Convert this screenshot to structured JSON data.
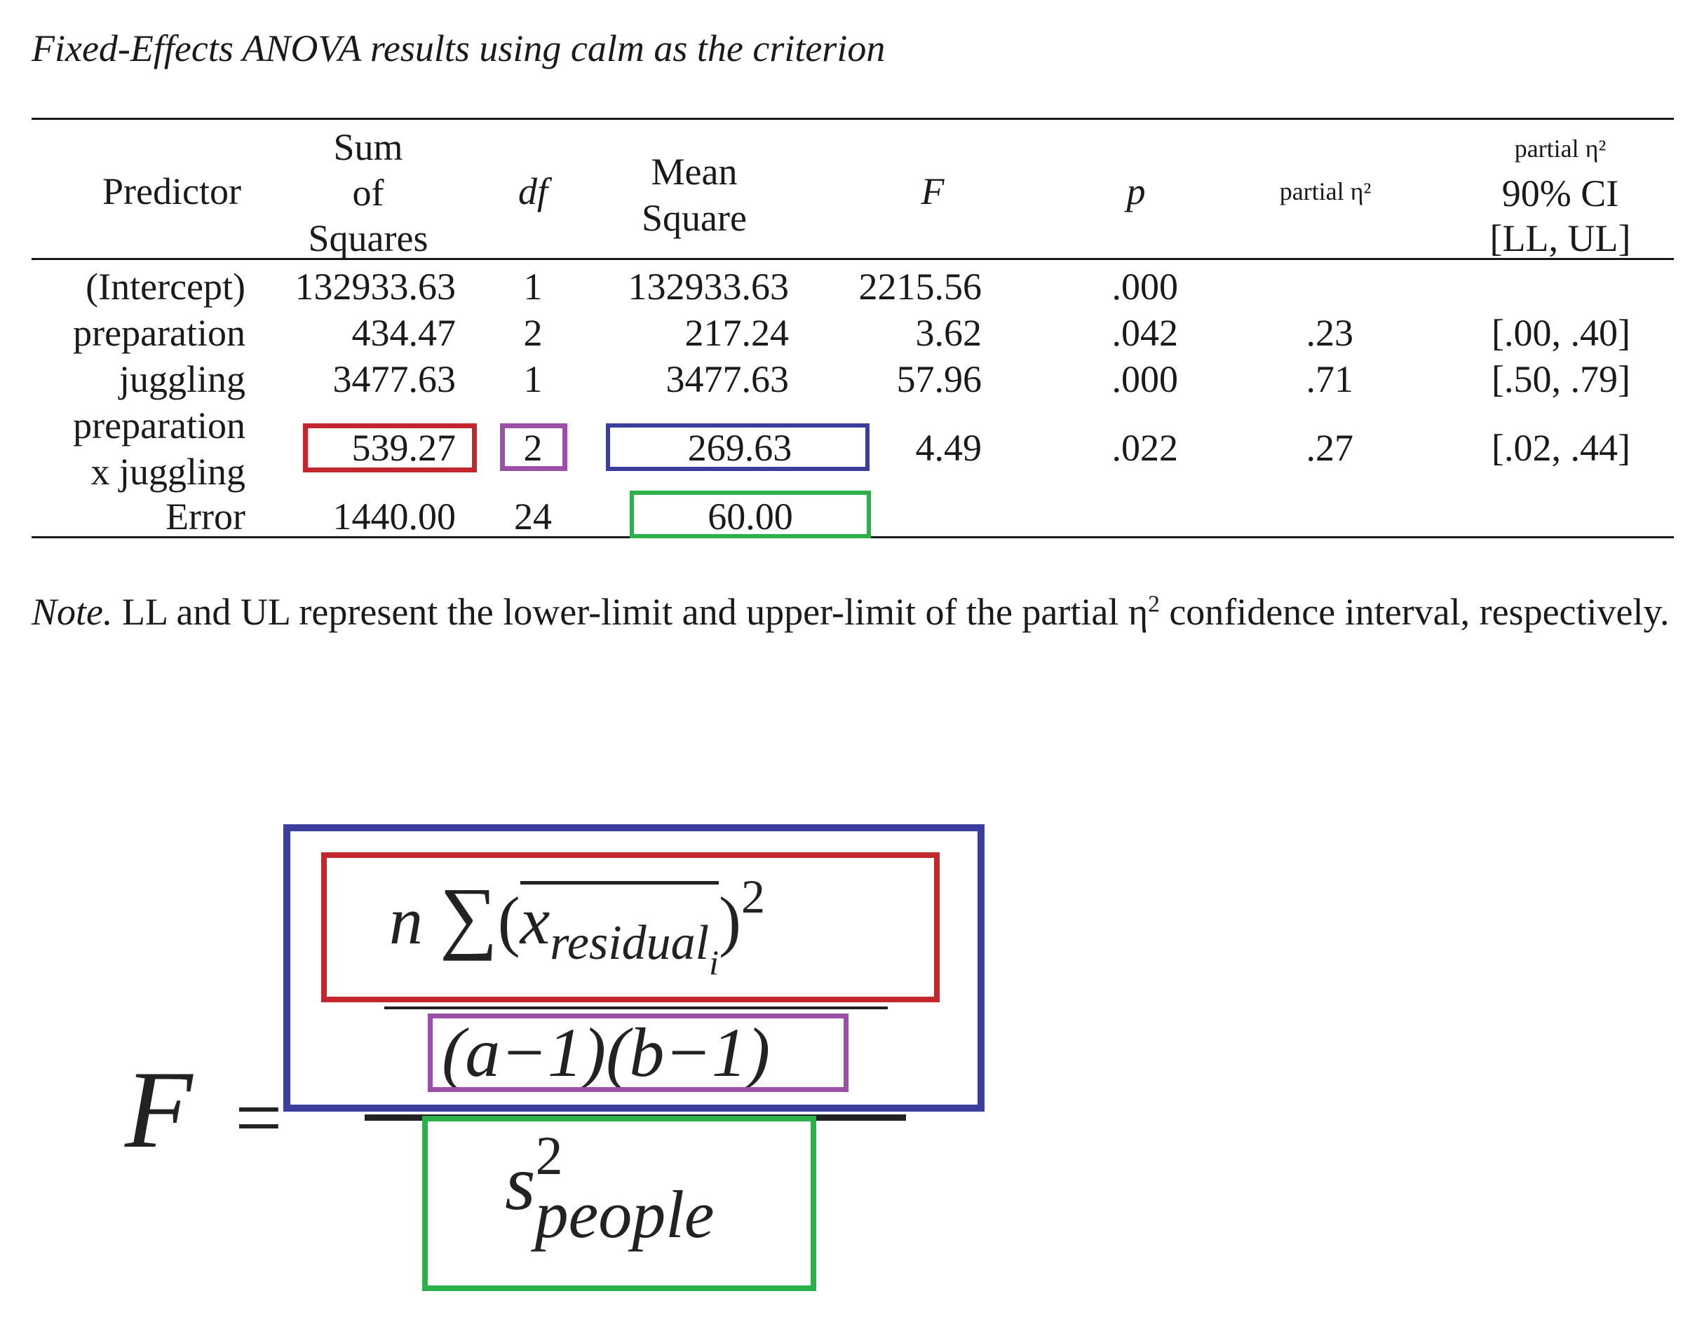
{
  "title": "Fixed-Effects ANOVA results using calm as the criterion",
  "headers": {
    "predictor": "Predictor",
    "ss": [
      "Sum",
      "of",
      "Squares"
    ],
    "df": "df",
    "ms": [
      "Mean",
      "Square"
    ],
    "f": "F",
    "p": "p",
    "eta": "partial η²",
    "ci": [
      "partial η²",
      "90% CI",
      "[LL, UL]"
    ]
  },
  "rows": [
    {
      "predictor": [
        "(Intercept)"
      ],
      "ss": "132933.63",
      "df": "1",
      "ms": "132933.63",
      "f": "2215.56",
      "p": ".000",
      "eta": "",
      "ci": ""
    },
    {
      "predictor": [
        "preparation"
      ],
      "ss": "434.47",
      "df": "2",
      "ms": "217.24",
      "f": "3.62",
      "p": ".042",
      "eta": ".23",
      "ci": "[.00, .40]"
    },
    {
      "predictor": [
        "juggling"
      ],
      "ss": "3477.63",
      "df": "1",
      "ms": "3477.63",
      "f": "57.96",
      "p": ".000",
      "eta": ".71",
      "ci": "[.50, .79]"
    },
    {
      "predictor": [
        "preparation",
        "x juggling"
      ],
      "ss": "539.27",
      "df": "2",
      "ms": "269.63",
      "f": "4.49",
      "p": ".022",
      "eta": ".27",
      "ci": "[.02, .44]"
    },
    {
      "predictor": [
        "Error"
      ],
      "ss": "1440.00",
      "df": "24",
      "ms": "60.00",
      "f": "",
      "p": "",
      "eta": "",
      "ci": ""
    }
  ],
  "note": {
    "label": "Note.",
    "text_before": " LL and UL represent the lower-limit and upper-limit of the partial η",
    "sup": "2",
    "text_after": " confidence interval, respectively."
  },
  "formula": {
    "lhs": "F",
    "equals": "=",
    "numerator_top": {
      "n": "n",
      "sum": "∑",
      "open": "(",
      "x": "x",
      "sub": "residual",
      "subsub": "i",
      "close": ")",
      "power": "2"
    },
    "numerator_bottom": "(a−1)(b−1)",
    "denominator": {
      "s": "s",
      "power": "2",
      "sub": "people"
    }
  },
  "colors": {
    "red": "#c1272d",
    "purple": "#9b4fa8",
    "blue": "#3b3e9c",
    "green": "#2bb04a"
  }
}
